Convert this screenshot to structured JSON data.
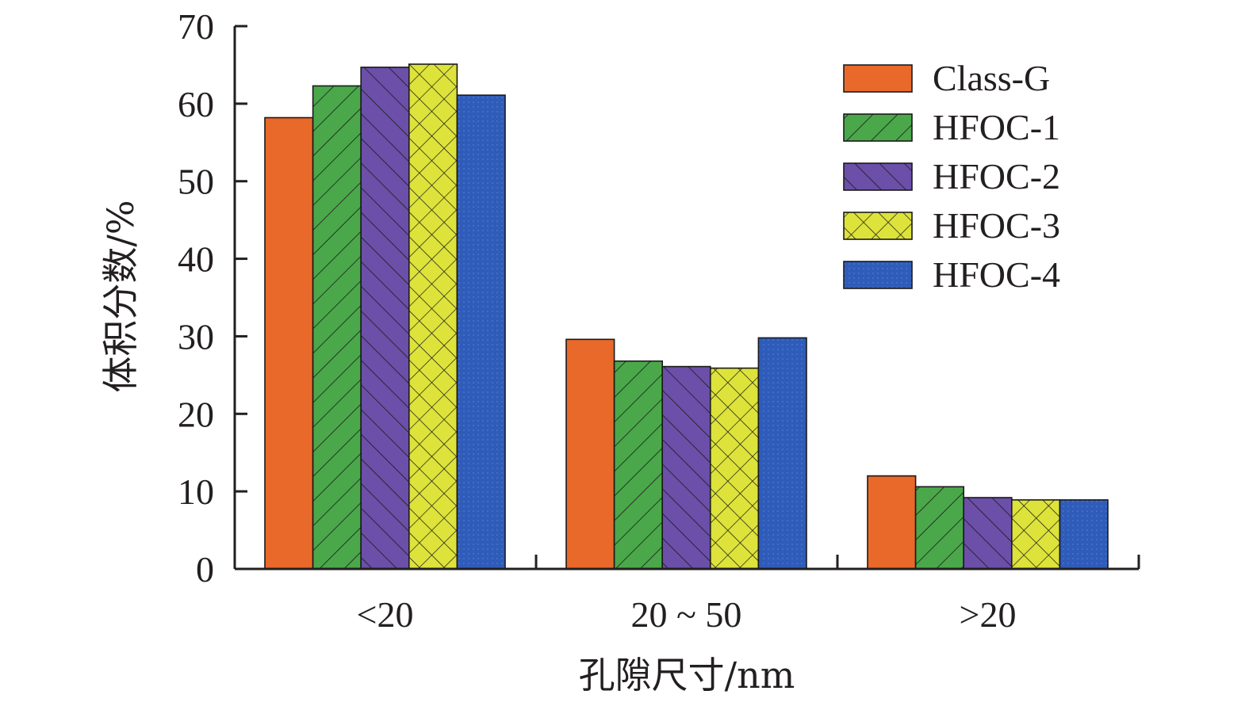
{
  "chart_data": {
    "type": "bar",
    "title": "",
    "xlabel": "孔隙尺寸/nm",
    "ylabel": "体积分数/%",
    "categories": [
      "<20",
      "20 ~ 50",
      ">20"
    ],
    "category_labels": [
      "<20",
      "20 ~ 50",
      ">20"
    ],
    "ylim": [
      0,
      70
    ],
    "yticks": [
      0,
      10,
      20,
      30,
      40,
      50,
      60,
      70
    ],
    "ytick_labels": [
      "0",
      "10",
      "20",
      "30",
      "40",
      "50",
      "60",
      "70"
    ],
    "grid": false,
    "legend_position": "top-right",
    "series": [
      {
        "name": "Class-G",
        "values": [
          58.2,
          29.6,
          12.0
        ],
        "color": "#e8692a",
        "pattern": "solid"
      },
      {
        "name": "HFOC-1",
        "values": [
          62.3,
          26.8,
          10.6
        ],
        "color": "#4aa84a",
        "pattern": "forward-hatch"
      },
      {
        "name": "HFOC-2",
        "values": [
          64.7,
          26.1,
          9.2
        ],
        "color": "#6b4fa8",
        "pattern": "back-hatch"
      },
      {
        "name": "HFOC-3",
        "values": [
          65.1,
          25.9,
          8.9
        ],
        "color": "#dde33a",
        "pattern": "cross-hatch"
      },
      {
        "name": "HFOC-4",
        "values": [
          61.1,
          29.8,
          8.9
        ],
        "color": "#2f5cb8",
        "pattern": "dots"
      }
    ]
  }
}
